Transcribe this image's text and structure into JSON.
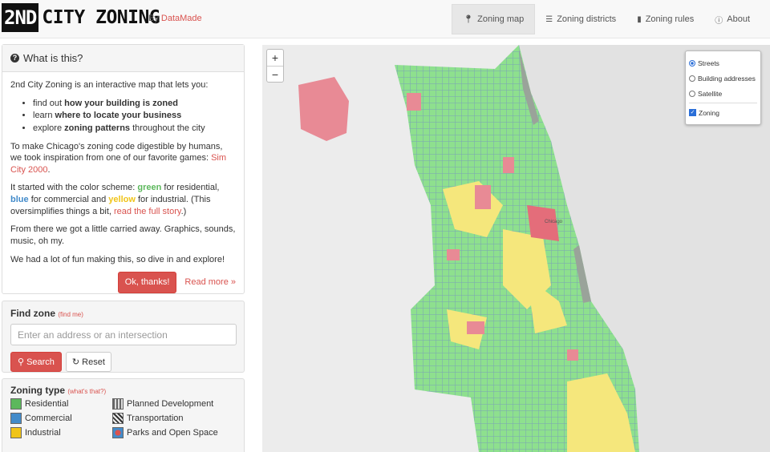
{
  "header": {
    "logo_box": "2ND",
    "logo_text": "CITY ZONING",
    "byline_prefix": "By",
    "byline_link": "DataMade",
    "nav": [
      {
        "label": "Zoning map",
        "icon": "map-marker-icon",
        "active": true
      },
      {
        "label": "Zoning districts",
        "icon": "list-icon",
        "active": false
      },
      {
        "label": "Zoning rules",
        "icon": "book-icon",
        "active": false
      },
      {
        "label": "About",
        "icon": "info-icon",
        "active": false
      }
    ]
  },
  "about": {
    "title": "What is this?",
    "intro": "2nd City Zoning is an interactive map that lets you:",
    "bullets": [
      {
        "pre": "find out",
        "bold": "how your building is zoned",
        "post": ""
      },
      {
        "pre": "learn",
        "bold": "where to locate your business",
        "post": ""
      },
      {
        "pre": "explore",
        "bold": "zoning patterns",
        "post": "throughout the city"
      }
    ],
    "p1_text": "To make Chicago's zoning code digestible by humans, we took inspiration from one of our favorite games:",
    "p1_link": "Sim City 2000",
    "p2_a": "It started with the color scheme:",
    "p2_green": "green",
    "p2_b": "for residential,",
    "p2_blue": "blue",
    "p2_c": "for commercial and",
    "p2_yellow": "yellow",
    "p2_d": "for industrial. (This oversimplifies things a bit,",
    "p2_link": "read the full story",
    "p2_e": ".)",
    "p3": "From there we got a little carried away. Graphics, sounds, music, oh my.",
    "p4": "We had a lot of fun making this, so dive in and explore!",
    "ok_button": "Ok, thanks!",
    "read_more": "Read more »"
  },
  "find": {
    "title": "Find zone",
    "find_me": "(find me)",
    "placeholder": "Enter an address or an intersection",
    "search_button": "Search",
    "reset_button": "Reset"
  },
  "zoning_type": {
    "title": "Zoning type",
    "whats_that": "(what's that?)",
    "items": [
      {
        "label": "Residential",
        "color": "#5cb85c"
      },
      {
        "label": "Planned Development",
        "color": "#888888"
      },
      {
        "label": "Commercial",
        "color": "#428bca"
      },
      {
        "label": "Transportation",
        "color": "#555555"
      },
      {
        "label": "Industrial",
        "color": "#f0c419"
      },
      {
        "label": "Parks and Open Space",
        "color": "#d9534f"
      }
    ]
  },
  "map": {
    "zoom_in": "+",
    "zoom_out": "−",
    "layers": [
      {
        "label": "Streets",
        "type": "radio",
        "checked": true
      },
      {
        "label": "Building addresses",
        "type": "radio",
        "checked": false
      },
      {
        "label": "Satellite",
        "type": "radio",
        "checked": false
      },
      {
        "label": "Zoning",
        "type": "checkbox",
        "checked": true
      }
    ],
    "city_label": "Chicago"
  }
}
